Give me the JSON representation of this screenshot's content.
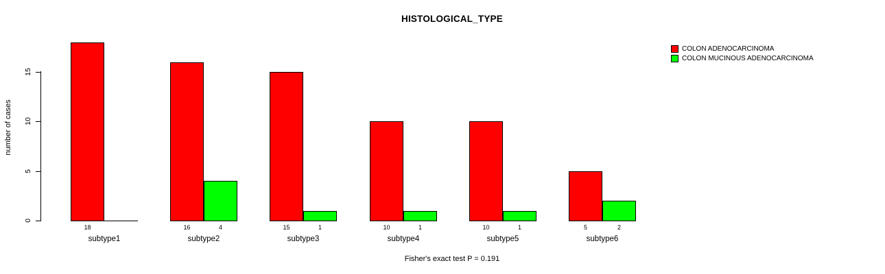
{
  "chart_data": {
    "type": "bar",
    "title": "HISTOLOGICAL_TYPE",
    "ylabel": "number of cases",
    "xlabel": "",
    "annotation": "Fisher's exact test P = 0.191",
    "categories": [
      "subtype1",
      "subtype2",
      "subtype3",
      "subtype4",
      "subtype5",
      "subtype6"
    ],
    "series": [
      {
        "name": "COLON ADENOCARCINOMA",
        "color": "#ff0000",
        "values": [
          18,
          16,
          15,
          10,
          10,
          5
        ]
      },
      {
        "name": "COLON MUCINOUS ADENOCARCINOMA",
        "color": "#00ff00",
        "values": [
          0,
          4,
          1,
          1,
          1,
          2
        ]
      }
    ],
    "bar_value_labels": [
      [
        "18",
        "16",
        "15",
        "10",
        "10",
        "5"
      ],
      [
        "",
        "4",
        "1",
        "1",
        "1",
        "2"
      ]
    ],
    "yticks": [
      "0",
      "5",
      "10",
      "15"
    ],
    "ylim": [
      0,
      18
    ],
    "grid": false,
    "legend_position": "top-right",
    "background_color": "#ffffff",
    "text_color": "#000000"
  }
}
